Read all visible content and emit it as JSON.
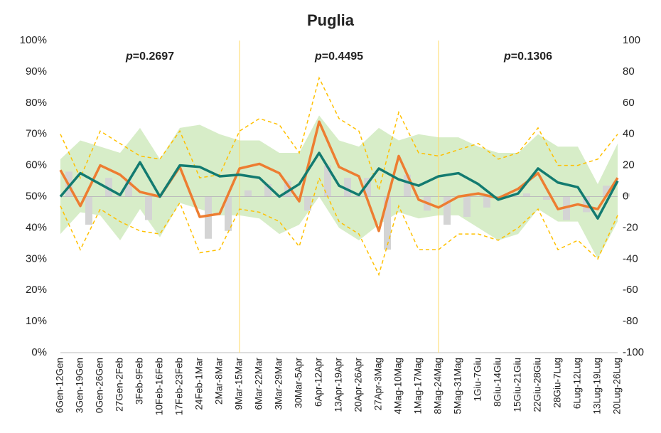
{
  "chart_data": {
    "type": "line",
    "title": "Puglia",
    "categories": [
      "6Gen-12Gen",
      "3Gen-19Gen",
      "0Gen-26Gen",
      "27Gen-2Feb",
      "3Feb-9Feb",
      "10Feb-16Feb",
      "17Feb-23Feb",
      "24Feb-1Mar",
      "2Mar-8Mar",
      "9Mar-15Mar",
      "6Mar-22Mar",
      "3Mar-29Mar",
      "30Mar-5Apr",
      "6Apr-12Apr",
      "13Apr-19Apr",
      "20Apr-26Apr",
      "27Apr-3Mag",
      "4Mag-10Mag",
      "1Mag-17Mag",
      "8Mag-24Mag",
      "5Mag-31Mag",
      "1Giu-7Giu",
      "8Giu-14Giu",
      "15Giu-21Giu",
      "22Giu-28Giu",
      "28Giu-7Lug",
      "6Lug-12Lug",
      "13Lug-19Lug",
      "20Lug-26Lug"
    ],
    "series": [
      {
        "color": "#ed7d31",
        "values": [
          58.5,
          47,
          60,
          57,
          51.5,
          50,
          59.5,
          43.5,
          44.5,
          59,
          60.5,
          57.5,
          48.5,
          74,
          59.5,
          56.5,
          39,
          63,
          49,
          46.5,
          50,
          51,
          49.5,
          52.5,
          57.5,
          46,
          47.5,
          46,
          56
        ]
      },
      {
        "color": "#137b70",
        "values": [
          50,
          57.5,
          54,
          50.5,
          61,
          50,
          60,
          59.5,
          56.5,
          57,
          56,
          50,
          54,
          64,
          53.5,
          50.5,
          59,
          55.5,
          53.5,
          56.5,
          57.5,
          54,
          49,
          51,
          59,
          54.5,
          53,
          43,
          55
        ]
      }
    ],
    "bars": {
      "color": "#d4d4d4",
      "axis": "y2",
      "values": [
        16,
        -18,
        12,
        10,
        -15,
        0,
        0,
        -27,
        -22,
        4,
        8,
        10,
        -9,
        20,
        12,
        12,
        -34,
        14,
        -9,
        -18,
        -13,
        -7,
        0,
        2,
        -2,
        -15,
        -10,
        7,
        2
      ]
    },
    "band": {
      "color": "#c9e7b6",
      "upper": [
        62,
        68,
        66,
        64,
        72,
        62,
        72,
        73,
        70,
        68,
        68,
        64,
        64,
        76,
        68,
        66,
        72,
        68,
        70,
        69,
        69,
        66,
        64,
        64,
        70,
        66,
        66,
        54,
        67
      ],
      "lower": [
        38,
        45,
        44,
        36,
        46,
        37,
        48,
        46,
        44,
        44,
        43,
        38,
        41,
        50,
        40,
        36,
        41,
        45,
        43,
        44,
        44,
        40,
        36,
        38,
        46,
        42,
        42,
        30,
        42
      ]
    },
    "dashed": {
      "color": "#ffc000",
      "upper": [
        70,
        56,
        71,
        67,
        63,
        62,
        71,
        56,
        57,
        71,
        75,
        73,
        64,
        88,
        75,
        71,
        52,
        77,
        64,
        63,
        65,
        67,
        62,
        64,
        72,
        60,
        60,
        62,
        70
      ],
      "lower": [
        47,
        33,
        46,
        42,
        39,
        38,
        48,
        32,
        33,
        46,
        45,
        42,
        34,
        56,
        42,
        38,
        25,
        47,
        33,
        33,
        38,
        38,
        36,
        40,
        46,
        33,
        36,
        30,
        44
      ]
    },
    "annotations": [
      "p=0.2697",
      "p=0.4495",
      "p=0.1306"
    ],
    "ylim": [
      0,
      100
    ],
    "yticks": [
      {
        "value": 0,
        "label": "0%"
      },
      {
        "value": 10,
        "label": "10%"
      },
      {
        "value": 20,
        "label": "20%"
      },
      {
        "value": 30,
        "label": "30%"
      },
      {
        "value": 40,
        "label": "40%"
      },
      {
        "value": 50,
        "label": "50%"
      },
      {
        "value": 60,
        "label": "60%"
      },
      {
        "value": 70,
        "label": "70%"
      },
      {
        "value": 80,
        "label": "80%"
      },
      {
        "value": 90,
        "label": "90%"
      },
      {
        "value": 100,
        "label": "100%"
      }
    ],
    "y2lim": [
      -100,
      100
    ],
    "y2ticks": [
      -100,
      -80,
      -60,
      -40,
      -20,
      0,
      20,
      40,
      60,
      80,
      100
    ],
    "grid": false
  }
}
